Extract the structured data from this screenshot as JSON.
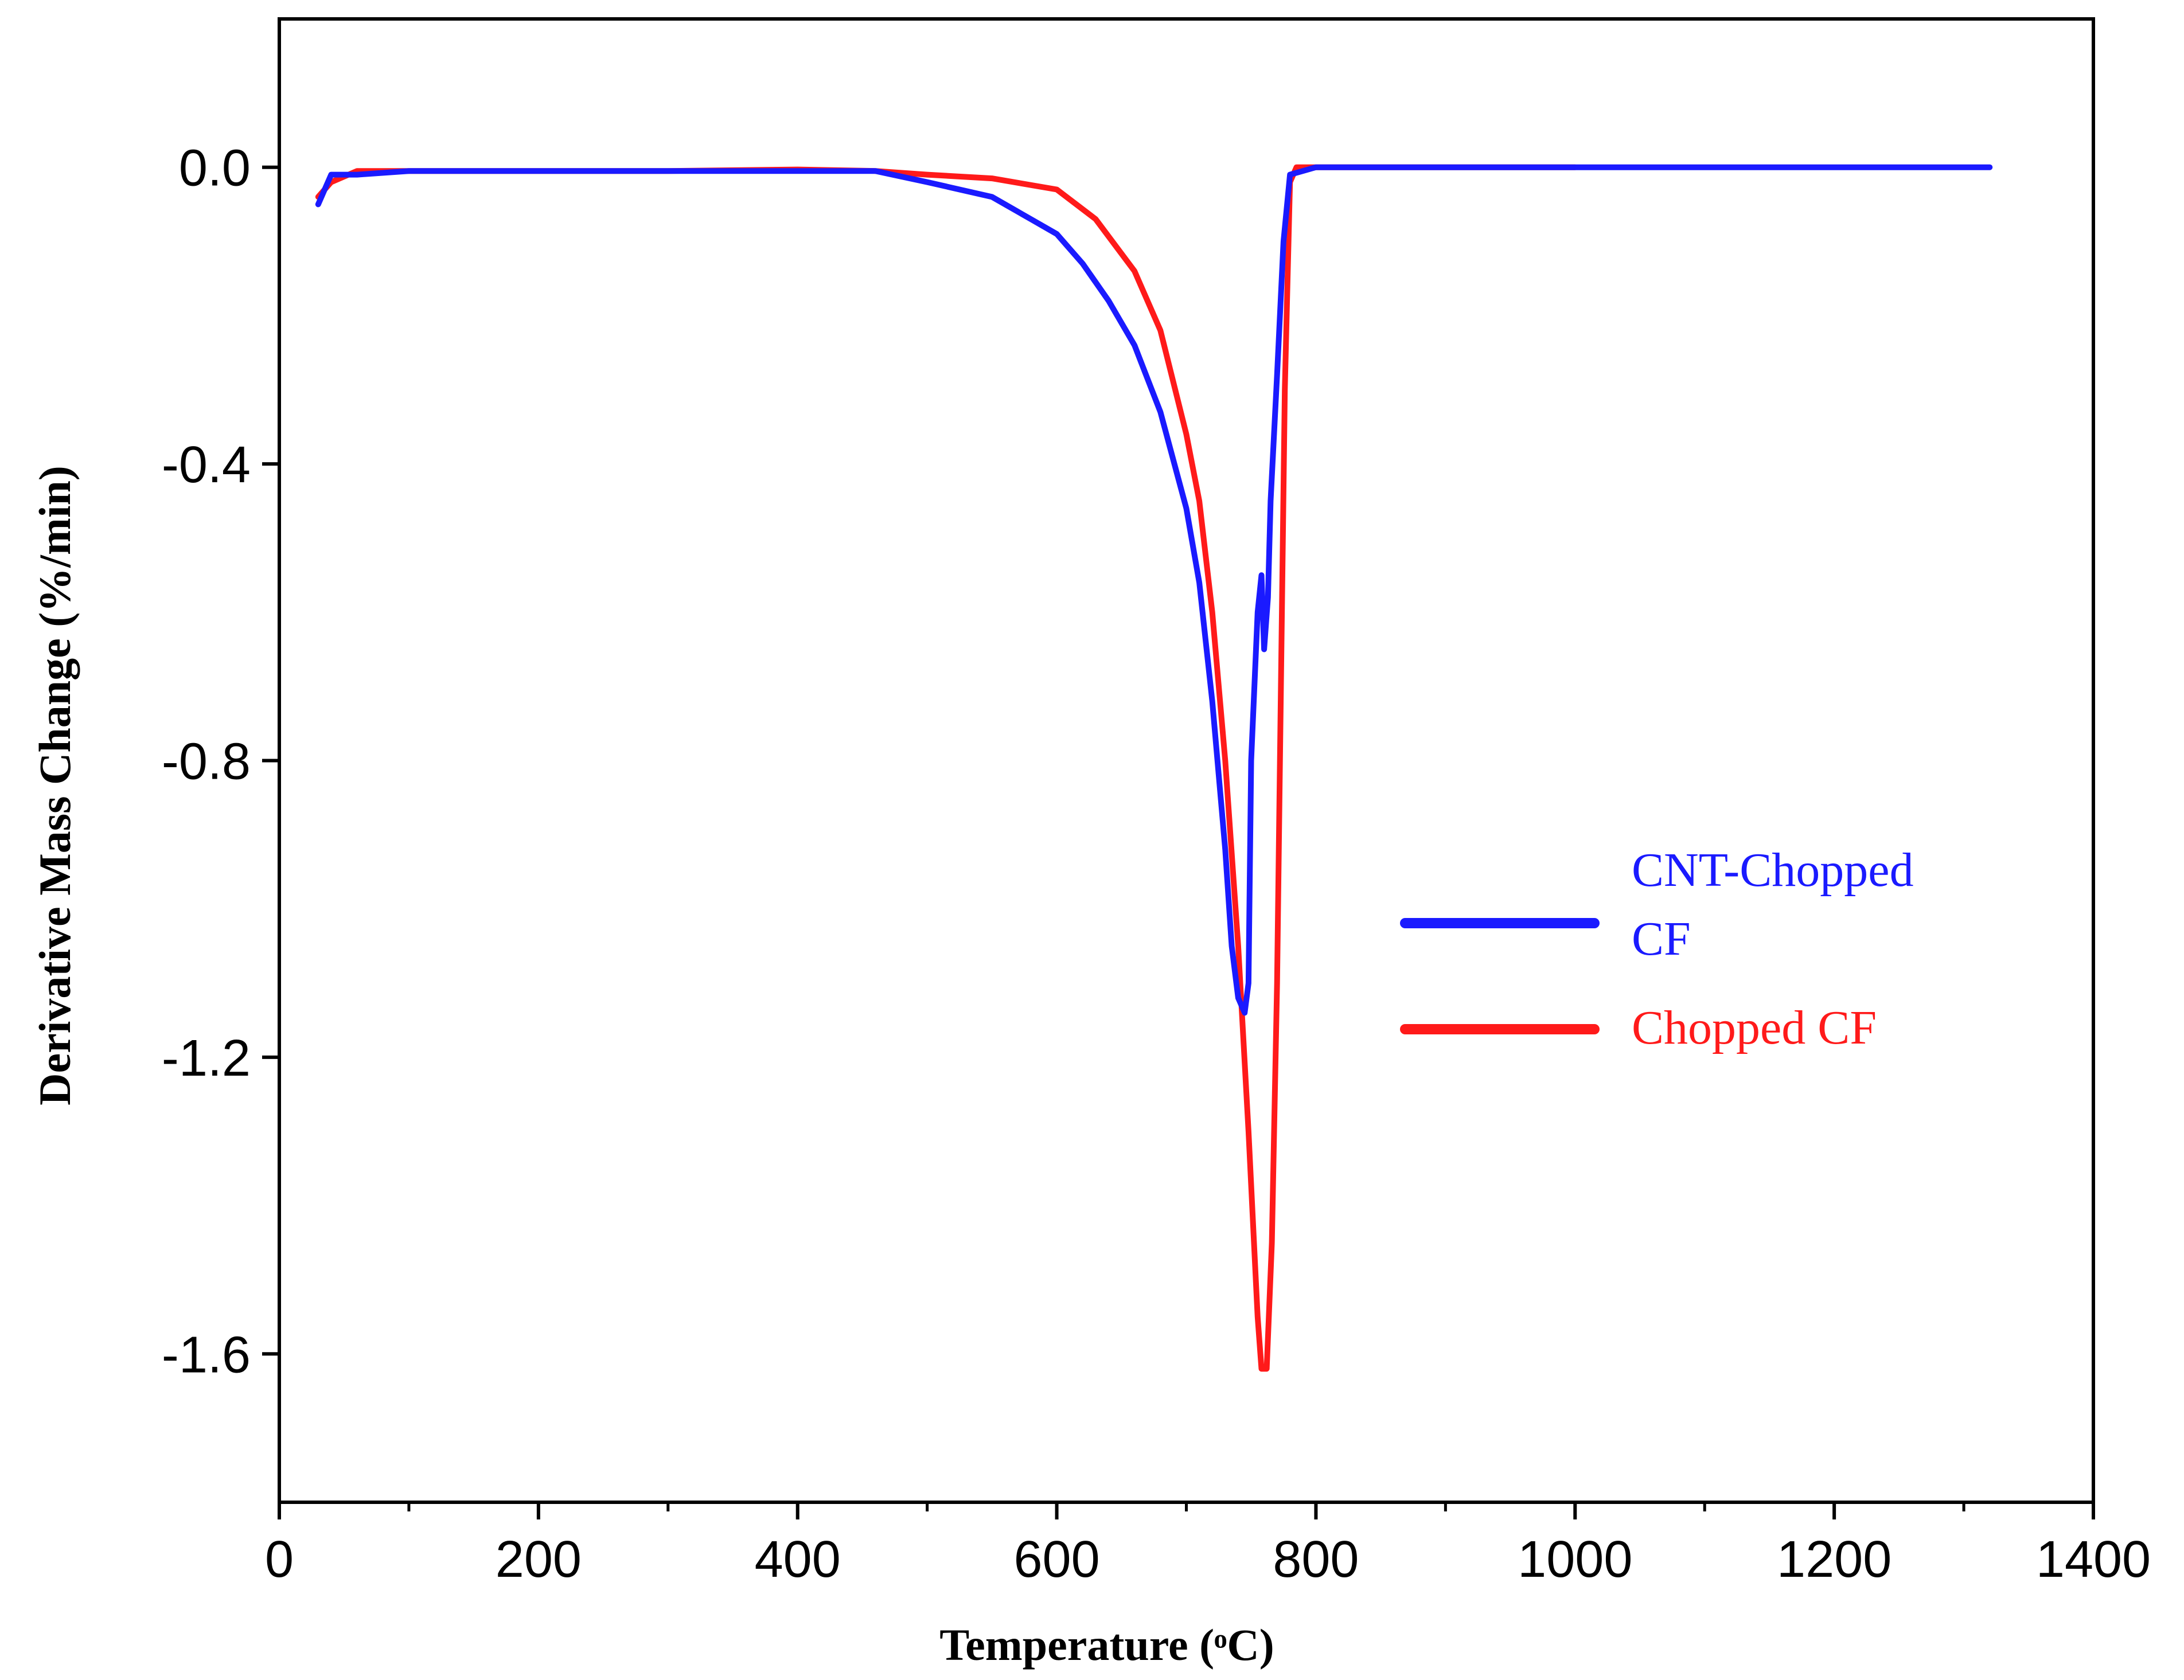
{
  "chart_data": {
    "type": "line",
    "xlabel": "Temperature",
    "xlabel_unit": "(ᵒC)",
    "ylabel": "Derivative Mass Change (%/min)",
    "xlim": [
      0,
      1400
    ],
    "ylim": [
      -1.8,
      0.2
    ],
    "xticks": [
      0,
      200,
      400,
      600,
      800,
      1000,
      1200,
      1400
    ],
    "xtick_labels": [
      "0",
      "200",
      "400",
      "600",
      "800",
      "1000",
      "1200",
      "1400"
    ],
    "yticks": [
      0.0,
      -0.4,
      -0.8,
      -1.2,
      -1.6
    ],
    "ytick_labels": [
      "0.0",
      "-0.4",
      "-0.8",
      "-1.2",
      "-1.6"
    ],
    "grid": false,
    "legend_position": "right",
    "series": [
      {
        "name": "CNT-Chopped CF",
        "legend_lines": [
          "CNT-Chopped",
          "CF"
        ],
        "color": "#1a1aff",
        "points": [
          [
            30,
            -0.05
          ],
          [
            40,
            -0.01
          ],
          [
            60,
            -0.01
          ],
          [
            100,
            -0.005
          ],
          [
            200,
            -0.005
          ],
          [
            300,
            -0.005
          ],
          [
            400,
            -0.005
          ],
          [
            460,
            -0.005
          ],
          [
            500,
            -0.02
          ],
          [
            550,
            -0.04
          ],
          [
            580,
            -0.07
          ],
          [
            600,
            -0.09
          ],
          [
            620,
            -0.13
          ],
          [
            640,
            -0.18
          ],
          [
            660,
            -0.24
          ],
          [
            680,
            -0.33
          ],
          [
            700,
            -0.46
          ],
          [
            710,
            -0.56
          ],
          [
            720,
            -0.72
          ],
          [
            730,
            -0.92
          ],
          [
            735,
            -1.05
          ],
          [
            740,
            -1.12
          ],
          [
            745,
            -1.14
          ],
          [
            748,
            -1.1
          ],
          [
            750,
            -0.8
          ],
          [
            755,
            -0.6
          ],
          [
            758,
            -0.55
          ],
          [
            760,
            -0.65
          ],
          [
            763,
            -0.58
          ],
          [
            765,
            -0.45
          ],
          [
            770,
            -0.28
          ],
          [
            775,
            -0.1
          ],
          [
            780,
            -0.01
          ],
          [
            800,
            0.0
          ],
          [
            900,
            0.0
          ],
          [
            1000,
            0.0
          ],
          [
            1100,
            0.0
          ],
          [
            1200,
            0.0
          ],
          [
            1320,
            0.0
          ]
        ]
      },
      {
        "name": "Chopped CF",
        "legend_lines": [
          "Chopped CF"
        ],
        "color": "#ff1a1a",
        "points": [
          [
            30,
            -0.04
          ],
          [
            40,
            -0.02
          ],
          [
            60,
            -0.005
          ],
          [
            100,
            -0.005
          ],
          [
            200,
            -0.005
          ],
          [
            300,
            -0.005
          ],
          [
            400,
            -0.003
          ],
          [
            460,
            -0.005
          ],
          [
            500,
            -0.01
          ],
          [
            550,
            -0.015
          ],
          [
            600,
            -0.03
          ],
          [
            630,
            -0.07
          ],
          [
            660,
            -0.14
          ],
          [
            680,
            -0.22
          ],
          [
            700,
            -0.36
          ],
          [
            710,
            -0.45
          ],
          [
            720,
            -0.6
          ],
          [
            730,
            -0.8
          ],
          [
            740,
            -1.05
          ],
          [
            748,
            -1.3
          ],
          [
            755,
            -1.55
          ],
          [
            758,
            -1.62
          ],
          [
            762,
            -1.62
          ],
          [
            766,
            -1.45
          ],
          [
            770,
            -1.1
          ],
          [
            773,
            -0.7
          ],
          [
            776,
            -0.3
          ],
          [
            780,
            -0.02
          ],
          [
            785,
            0.0
          ],
          [
            900,
            0.0
          ],
          [
            1000,
            0.0
          ]
        ]
      }
    ]
  }
}
